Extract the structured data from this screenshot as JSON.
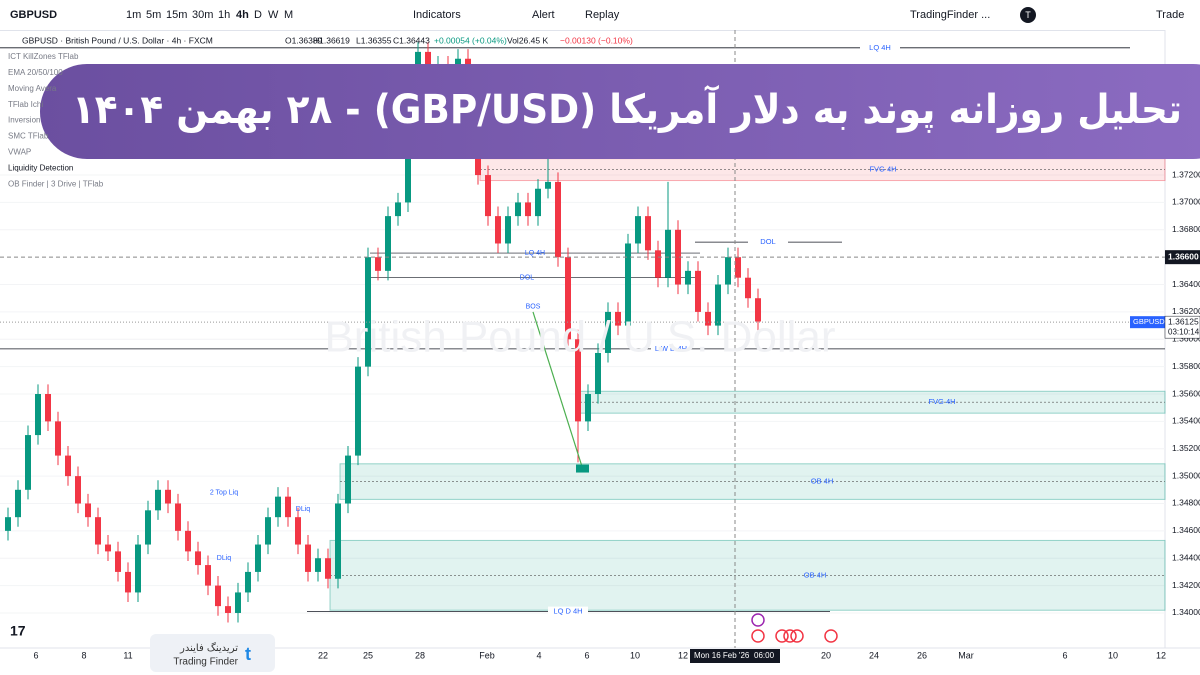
{
  "toolbar": {
    "symbol": "GBPUSD",
    "intervals": [
      "1m",
      "5m",
      "15m",
      "30m",
      "1h",
      "4h",
      "D",
      "W",
      "M"
    ],
    "indicators": "Indicators",
    "alert": "Alert",
    "replay": "Replay",
    "layout": "TradingFinder ...",
    "avatar": "T",
    "trade": "Trade"
  },
  "legend": {
    "title": "GBPUSD · British Pound / U.S. Dollar · 4h · FXCM",
    "open": "O1.36389",
    "high": "H1.36619",
    "low": "L1.36355",
    "close": "C1.36443",
    "change": "+0.00054 (+0.04%)",
    "volume": "Vol26.45 K",
    "vol_change": "−0.00130 (−0.10%)"
  },
  "indicator_list": [
    "ICT KillZones TFlab",
    "EMA 20/50/100",
    "Moving Avera",
    "TFlab Ichi",
    "Inversion",
    "SMC TFlab",
    "VWAP",
    "Liquidity Detection",
    "OB Finder | 3 Drive | TFlab"
  ],
  "banner": {
    "title": "تحلیل روزانه پوند به دلار آمریکا (GBP/USD) - ۲۸ بهمن ۱۴۰۴"
  },
  "watermark": "British Pound / U.S. Dollar",
  "logo": {
    "persian": "تریدینگ فایندر",
    "english": "Trading Finder"
  },
  "chart_data": {
    "type": "candlestick",
    "candles": {
      "open": [
        1.346,
        1.347,
        1.349,
        1.353,
        1.356,
        1.354,
        1.3515,
        1.35,
        1.348,
        1.347,
        1.345,
        1.3445,
        1.343,
        1.3415,
        1.345,
        1.3475,
        1.349,
        1.348,
        1.346,
        1.3445,
        1.3435,
        1.342,
        1.3405,
        1.34,
        1.3415,
        1.343,
        1.345,
        1.347,
        1.3485,
        1.347,
        1.345,
        1.343,
        1.344,
        1.3425,
        1.348,
        1.3515,
        1.358,
        1.366,
        1.365,
        1.369,
        1.37,
        1.376,
        1.381,
        1.379,
        1.38,
        1.3785,
        1.3805,
        1.377,
        1.372,
        1.369,
        1.367,
        1.369,
        1.37,
        1.369,
        1.371,
        1.3715,
        1.366,
        1.36,
        1.354,
        1.356,
        1.359,
        1.362,
        1.361,
        1.367,
        1.369,
        1.3665,
        1.3645,
        1.368,
        1.364,
        1.365,
        1.362,
        1.361,
        1.364,
        1.366,
        1.3645,
        1.363
      ],
      "high": [
        1.3477,
        1.3497,
        1.3537,
        1.3567,
        1.3567,
        1.3547,
        1.3522,
        1.3507,
        1.3487,
        1.3477,
        1.3457,
        1.3452,
        1.3437,
        1.3457,
        1.3482,
        1.3497,
        1.3497,
        1.3487,
        1.3467,
        1.3452,
        1.3442,
        1.3427,
        1.3412,
        1.3422,
        1.3437,
        1.3457,
        1.3477,
        1.3492,
        1.3492,
        1.3477,
        1.3457,
        1.3447,
        1.3447,
        1.3487,
        1.3522,
        1.3587,
        1.3667,
        1.3667,
        1.3697,
        1.3707,
        1.3767,
        1.3817,
        1.3817,
        1.3807,
        1.3807,
        1.3812,
        1.3812,
        1.3777,
        1.3727,
        1.3697,
        1.3697,
        1.3707,
        1.3707,
        1.3717,
        1.3732,
        1.3722,
        1.3667,
        1.3607,
        1.3567,
        1.3597,
        1.3627,
        1.3627,
        1.3677,
        1.3697,
        1.3697,
        1.3672,
        1.3715,
        1.3687,
        1.3657,
        1.3657,
        1.3627,
        1.3647,
        1.3667,
        1.3667,
        1.3652,
        1.3637
      ],
      "low": [
        1.3453,
        1.3463,
        1.3483,
        1.3523,
        1.3533,
        1.3508,
        1.3493,
        1.3473,
        1.3463,
        1.3443,
        1.3438,
        1.3423,
        1.3408,
        1.3408,
        1.3443,
        1.3468,
        1.3473,
        1.3453,
        1.3438,
        1.3428,
        1.3413,
        1.3398,
        1.3393,
        1.3393,
        1.3408,
        1.3423,
        1.3443,
        1.3463,
        1.3463,
        1.3443,
        1.3423,
        1.3423,
        1.3418,
        1.3418,
        1.3473,
        1.3508,
        1.3573,
        1.3643,
        1.3643,
        1.3683,
        1.3693,
        1.3753,
        1.3783,
        1.3783,
        1.3778,
        1.3778,
        1.3763,
        1.3713,
        1.3683,
        1.3663,
        1.3663,
        1.3683,
        1.3683,
        1.3683,
        1.3703,
        1.3653,
        1.3593,
        1.351,
        1.3533,
        1.3553,
        1.3583,
        1.3603,
        1.3603,
        1.3663,
        1.3658,
        1.3638,
        1.3638,
        1.3633,
        1.3633,
        1.3613,
        1.3603,
        1.3603,
        1.3633,
        1.3638,
        1.3623,
        1.3606
      ],
      "close": [
        1.347,
        1.349,
        1.353,
        1.356,
        1.354,
        1.3515,
        1.35,
        1.348,
        1.347,
        1.345,
        1.3445,
        1.343,
        1.3415,
        1.345,
        1.3475,
        1.349,
        1.348,
        1.346,
        1.3445,
        1.3435,
        1.342,
        1.3405,
        1.34,
        1.3415,
        1.343,
        1.345,
        1.347,
        1.3485,
        1.347,
        1.345,
        1.343,
        1.344,
        1.3425,
        1.348,
        1.3515,
        1.358,
        1.366,
        1.365,
        1.369,
        1.37,
        1.376,
        1.381,
        1.379,
        1.38,
        1.3785,
        1.3805,
        1.377,
        1.372,
        1.369,
        1.367,
        1.369,
        1.37,
        1.369,
        1.371,
        1.3715,
        1.366,
        1.36,
        1.354,
        1.356,
        1.359,
        1.362,
        1.361,
        1.367,
        1.369,
        1.3665,
        1.3645,
        1.368,
        1.364,
        1.365,
        1.362,
        1.361,
        1.364,
        1.366,
        1.3645,
        1.363,
        1.3613
      ]
    },
    "up_color": "#089981",
    "down_color": "#f23645",
    "ylim": [
      1.33744,
      1.3826
    ],
    "yticks": [
      {
        "value": 1.34,
        "label": "1.34000"
      },
      {
        "value": 1.342,
        "label": "1.34200"
      },
      {
        "value": 1.344,
        "label": "1.34400"
      },
      {
        "value": 1.346,
        "label": "1.34600"
      },
      {
        "value": 1.348,
        "label": "1.34800"
      },
      {
        "value": 1.35,
        "label": "1.35000"
      },
      {
        "value": 1.352,
        "label": "1.35200"
      },
      {
        "value": 1.354,
        "label": "1.35400"
      },
      {
        "value": 1.356,
        "label": "1.35600"
      },
      {
        "value": 1.358,
        "label": "1.35800"
      },
      {
        "value": 1.36,
        "label": "1.36000"
      },
      {
        "value": 1.362,
        "label": "1.36200"
      },
      {
        "value": 1.364,
        "label": "1.36400"
      },
      {
        "value": 1.368,
        "label": "1.36800"
      },
      {
        "value": 1.37,
        "label": "1.37000"
      },
      {
        "value": 1.372,
        "label": "1.37200"
      }
    ],
    "time_labels": [
      "6",
      "8",
      "11",
      "22",
      "25",
      "28",
      "Feb",
      "4",
      "6",
      "10",
      "12",
      "20",
      "24",
      "26",
      "Mar",
      "6",
      "10",
      "12"
    ],
    "crosshair_time": "Mon 16 Feb '26",
    "crosshair_clock": "06:00",
    "crosshair_price": {
      "value": 1.366,
      "label": "1.36600"
    },
    "last_price": {
      "value": 1.36125,
      "label": "1.36125",
      "symbol": "GBPUSD",
      "countdown": "03:10:14"
    },
    "zones": [
      {
        "label": "FVG 4H",
        "top": 1.3732,
        "bottom": 1.3716,
        "color": "#f23645"
      },
      {
        "label": "FVG 4H",
        "top": 1.3562,
        "bottom": 1.3546,
        "color": "#089981"
      },
      {
        "label": "OB 4H",
        "top": 1.3509,
        "bottom": 1.3483,
        "color": "#089981"
      },
      {
        "label": "OB 4H",
        "top": 1.3453,
        "bottom": 1.3402,
        "color": "#089981"
      }
    ],
    "levels": [
      {
        "label": "LQ 4H",
        "price": 1.3813
      },
      {
        "label": "DOL",
        "price": 1.3671
      },
      {
        "label": "L W D 4H",
        "price": 1.3593
      },
      {
        "label": "LQ D 4H",
        "price": 1.3401
      }
    ],
    "notes": [
      {
        "label": "LQ 4H",
        "price": 1.3663
      },
      {
        "label": "DOL",
        "price": 1.3645
      },
      {
        "label": "BOS",
        "price": 1.3624
      },
      {
        "label": "2 Top Liq",
        "price": 1.3488
      },
      {
        "label": "DLiq",
        "price": 1.3476
      },
      {
        "label": "DLiq",
        "price": 1.344
      }
    ]
  }
}
